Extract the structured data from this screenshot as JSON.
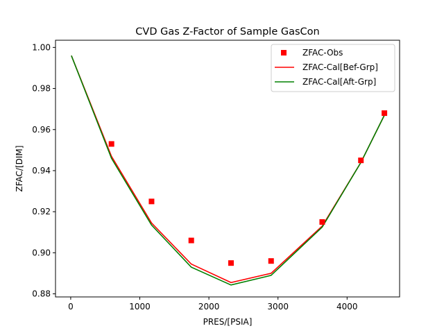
{
  "chart_data": {
    "type": "line",
    "title": "CVD Gas Z-Factor of Sample GasCon",
    "xlabel": "PRES/[PSIA]",
    "ylabel": "ZFAC/[DIM]",
    "xlim": [
      -220,
      4760
    ],
    "ylim": [
      0.8785,
      1.0035
    ],
    "xticks": [
      0,
      1000,
      2000,
      3000,
      4000
    ],
    "xtick_labels": [
      "0",
      "1000",
      "2000",
      "3000",
      "4000"
    ],
    "yticks": [
      0.88,
      0.9,
      0.92,
      0.94,
      0.96,
      0.98,
      1.0
    ],
    "ytick_labels": [
      "0.88",
      "0.90",
      "0.92",
      "0.94",
      "0.96",
      "0.98",
      "1.00"
    ],
    "grid": false,
    "legend_position": "top-right",
    "series": [
      {
        "name": "ZFAC-Obs",
        "kind": "scatter",
        "marker": "square",
        "color": "#ff0000",
        "x": [
          590,
          1170,
          1745,
          2320,
          2900,
          3640,
          4200,
          4540
        ],
        "y": [
          0.953,
          0.925,
          0.906,
          0.895,
          0.896,
          0.915,
          0.945,
          0.968
        ]
      },
      {
        "name": "ZFAC-Cal[Bef-Grp]",
        "kind": "line",
        "color": "#ff0000",
        "x": [
          10,
          590,
          1170,
          1745,
          2320,
          2900,
          3640,
          4200,
          4540
        ],
        "y": [
          0.996,
          0.947,
          0.9145,
          0.8945,
          0.8855,
          0.89,
          0.913,
          0.944,
          0.967
        ]
      },
      {
        "name": "ZFAC-Cal[Aft-Grp]",
        "kind": "line",
        "color": "#008000",
        "x": [
          10,
          590,
          1170,
          1745,
          2320,
          2900,
          3640,
          4200,
          4540
        ],
        "y": [
          0.996,
          0.946,
          0.9135,
          0.893,
          0.8843,
          0.889,
          0.9125,
          0.944,
          0.967
        ]
      }
    ]
  }
}
